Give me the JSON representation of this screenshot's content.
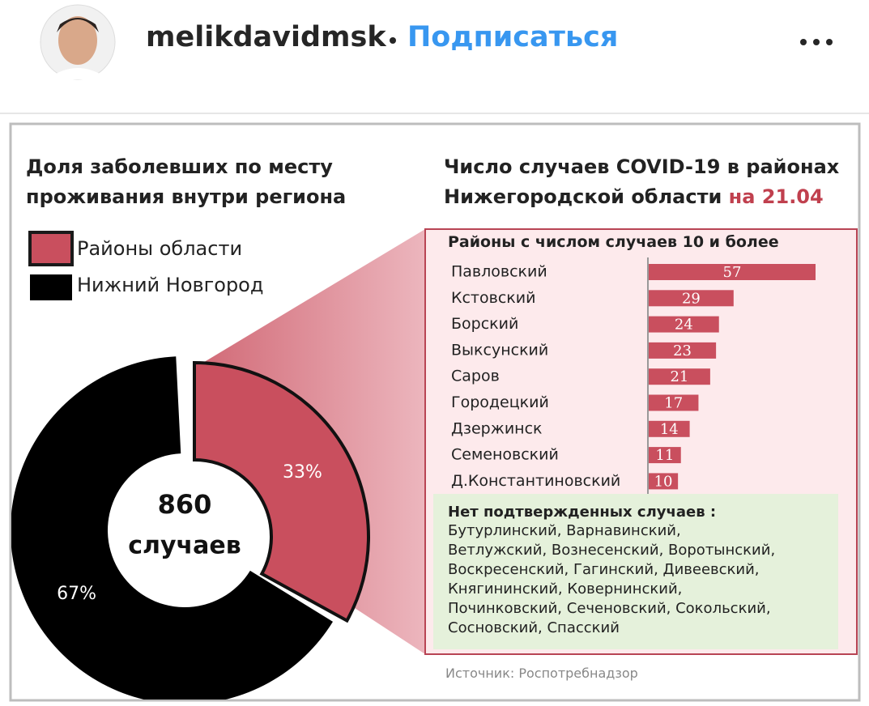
{
  "header": {
    "username": "melikdavidmsk",
    "action": "Подписаться"
  },
  "chart_data": [
    {
      "type": "donut",
      "title": [
        "Доля заболевших  по месту",
        "проживания внутри региона"
      ],
      "categories": [
        "Районы области",
        "Нижний Новгород"
      ],
      "values": [
        33,
        67
      ],
      "value_labels": [
        "33%",
        "67%"
      ],
      "colors": [
        "#c94f5e",
        "#000000"
      ],
      "total": 860,
      "total_unit": "случаев"
    },
    {
      "type": "bar",
      "title": [
        "Число случаев COVID-19 в районах",
        "Нижегородской области"
      ],
      "date": "на 21.04",
      "subtitle": "Районы с числом случаев 10 и более",
      "categories": [
        "Павловский",
        "Кстовский",
        "Борский",
        "Выксунский",
        "Саров",
        "Городецкий",
        "Дзержинск",
        "Семеновский",
        "Д.Константиновский"
      ],
      "values": [
        57,
        29,
        24,
        23,
        21,
        17,
        14,
        11,
        10
      ],
      "color": "#c94f5e"
    }
  ],
  "no_cases": {
    "title": "Нет подтвержденных случаев :",
    "lines": [
      "Бутурлинский, Варнавинский,",
      "Ветлужский, Вознесенский, Воротынский,",
      "Воскресенский, Гагинский, Дивеевский,",
      "Княгининский, Ковернинский,",
      "Починковский, Сеченовский, Сокольский,",
      "Сосновский, Спасский"
    ]
  },
  "source": "Источник: Роспотребнадзор"
}
